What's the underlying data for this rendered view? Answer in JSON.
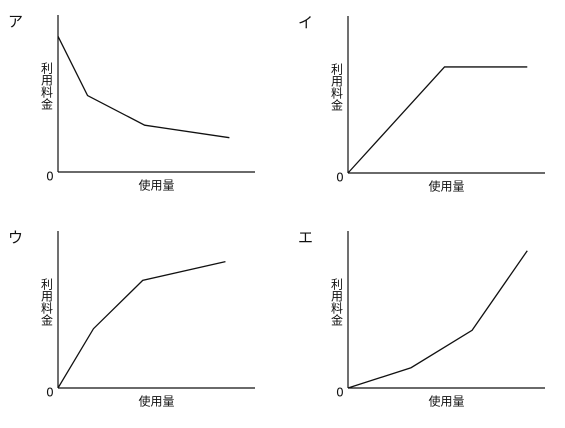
{
  "chart_data": [
    {
      "type": "line",
      "title": "ア",
      "y_label": "利用料金",
      "x_label": "使用量",
      "x": [
        0,
        15,
        44,
        87
      ],
      "values": [
        87,
        49,
        30,
        22
      ],
      "xlim": [
        0,
        100
      ],
      "ylim": [
        0,
        100
      ],
      "xticks": [
        0
      ],
      "color": "#111111"
    },
    {
      "type": "line",
      "title": "イ",
      "y_label": "利用料金",
      "x_label": "使用量",
      "x": [
        0,
        49,
        91
      ],
      "values": [
        0,
        68,
        68
      ],
      "xlim": [
        0,
        100
      ],
      "ylim": [
        0,
        100
      ],
      "xticks": [
        0
      ],
      "color": "#111111"
    },
    {
      "type": "line",
      "title": "ウ",
      "y_label": "利用料金",
      "x_label": "使用量",
      "x": [
        0,
        18,
        43,
        85
      ],
      "values": [
        0,
        38,
        69,
        81
      ],
      "xlim": [
        0,
        100
      ],
      "ylim": [
        0,
        100
      ],
      "xticks": [
        0
      ],
      "color": "#111111"
    },
    {
      "type": "line",
      "title": "エ",
      "y_label": "利用料金",
      "x_label": "使用量",
      "x": [
        0,
        32,
        63,
        91
      ],
      "values": [
        0,
        13,
        37,
        88
      ],
      "xlim": [
        0,
        100
      ],
      "ylim": [
        0,
        100
      ],
      "xticks": [
        0
      ],
      "color": "#111111"
    }
  ]
}
